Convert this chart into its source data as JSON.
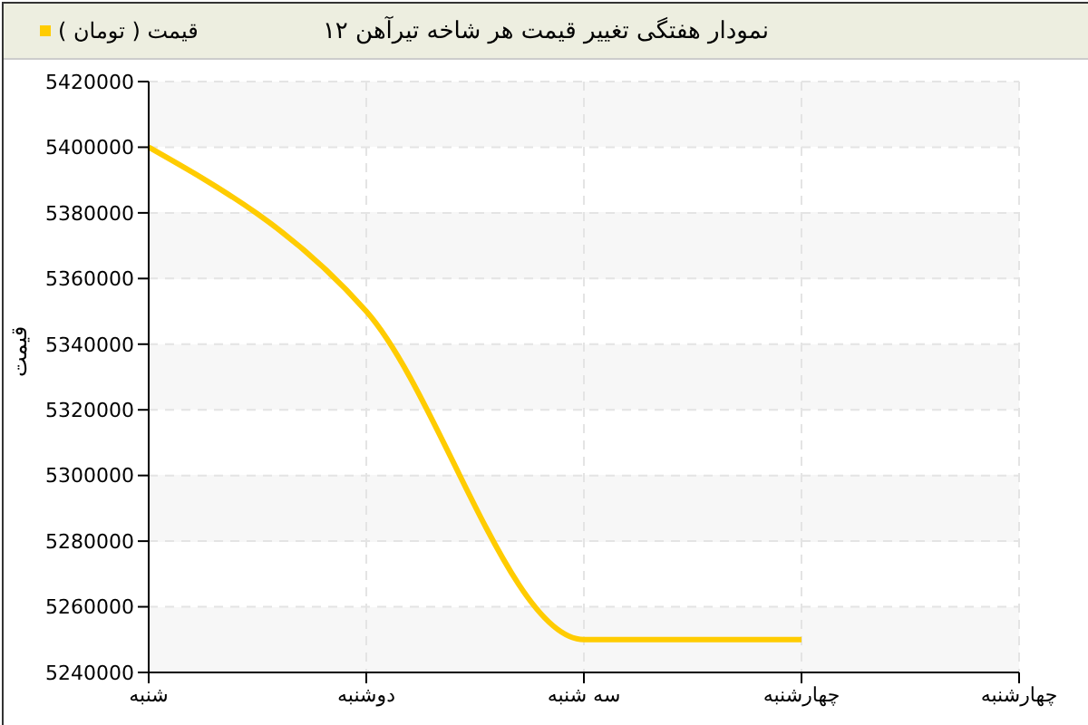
{
  "chart_data": {
    "type": "line",
    "title": "نمودار هفتگی تغییر قیمت هر شاخه تیرآهن ۱۲",
    "ylabel": "قیمت",
    "categories": [
      "شنبه",
      "دوشنبه",
      "سه شنبه",
      "چهارشنبه",
      "چهارشنبه"
    ],
    "series": [
      {
        "name": "قیمت ( تومان )",
        "color": "#ffcc00",
        "values": [
          5400000,
          5350000,
          5250000,
          5250000,
          null
        ]
      }
    ],
    "ylim": [
      5240000,
      5420000
    ],
    "yticks": [
      5240000,
      5260000,
      5280000,
      5300000,
      5320000,
      5340000,
      5360000,
      5380000,
      5400000,
      5420000
    ],
    "grid": true,
    "legend": "top left",
    "marker": "none",
    "line_style": "solid"
  }
}
